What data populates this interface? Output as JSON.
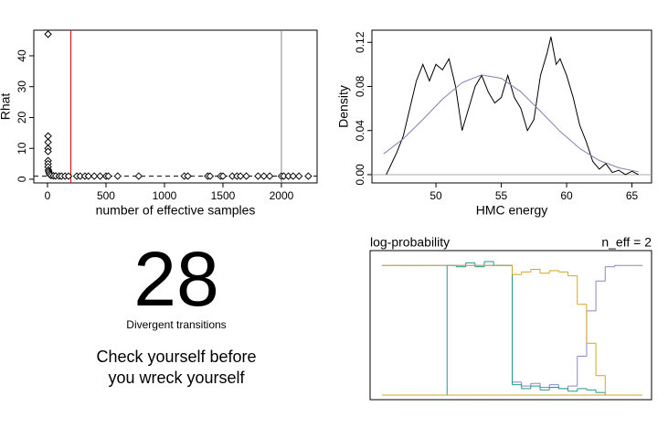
{
  "chart_data": [
    {
      "type": "scatter",
      "xlabel": "number of effective samples",
      "ylabel": "Rhat",
      "xlim": [
        -117,
        2305
      ],
      "ylim": [
        -1.2,
        48.3
      ],
      "xticks": [
        0,
        500,
        1000,
        1500,
        2000
      ],
      "yticks": [
        0,
        10,
        20,
        30,
        40
      ],
      "color": "#000000",
      "x": [
        5,
        5,
        5,
        5,
        5,
        5,
        5,
        5,
        8,
        10,
        15,
        20,
        30,
        50,
        70,
        100,
        120,
        150,
        180,
        250,
        280,
        320,
        350,
        400,
        450,
        500,
        520,
        600,
        780,
        1170,
        1200,
        1370,
        1390,
        1480,
        1500,
        1580,
        1620,
        1650,
        1700,
        1800,
        1850,
        1900,
        2000,
        2020,
        2060,
        2100,
        2150,
        2230
      ],
      "values": [
        47,
        14,
        12,
        10,
        9,
        6,
        5,
        4,
        3,
        2.5,
        2,
        1.5,
        1.2,
        1.1,
        1.05,
        1,
        1,
        1,
        1,
        1,
        1,
        1,
        1,
        1,
        1,
        1,
        1,
        1,
        1,
        1,
        1,
        1,
        1,
        1,
        1,
        1,
        1,
        1,
        1,
        1,
        1,
        1,
        1,
        1,
        1,
        1,
        1,
        1
      ],
      "vlines": [
        {
          "value": 200,
          "color": "#cc0000"
        },
        {
          "value": 2000,
          "color": "#888888"
        }
      ],
      "hlines": [
        {
          "value": 1,
          "color": "#000000",
          "dashed": true
        }
      ]
    },
    {
      "type": "line",
      "xlabel": "HMC energy",
      "ylabel": "Density",
      "xlim": [
        45.1,
        66.5
      ],
      "ylim": [
        -0.0075,
        0.131
      ],
      "xticks": [
        50,
        55,
        60,
        65
      ],
      "yticks": [
        {
          "value": 0,
          "label": "0.00"
        },
        0.04,
        0.08,
        0.12
      ],
      "series": [
        {
          "color": "#000000",
          "x": [
            46.2,
            46.6,
            47,
            47.5,
            48,
            48.5,
            49,
            49.5,
            50,
            50.5,
            51,
            51.5,
            52,
            52.5,
            53,
            53.5,
            54,
            54.5,
            55,
            55.5,
            56,
            56.5,
            57,
            57.5,
            58,
            58.5,
            58.8,
            59.2,
            59.5,
            60,
            60.5,
            61,
            61.5,
            62,
            62.5,
            63,
            63.5,
            64,
            64.5,
            65,
            65.5
          ],
          "values": [
            0,
            0.01,
            0.02,
            0.035,
            0.06,
            0.085,
            0.1,
            0.085,
            0.1,
            0.095,
            0.105,
            0.08,
            0.04,
            0.06,
            0.08,
            0.09,
            0.075,
            0.065,
            0.07,
            0.09,
            0.07,
            0.06,
            0.04,
            0.05,
            0.09,
            0.11,
            0.125,
            0.1,
            0.105,
            0.09,
            0.07,
            0.045,
            0.03,
            0.012,
            0.005,
            0.01,
            0.002,
            0.004,
            0,
            0.003,
            0
          ]
        },
        {
          "color": "#8080b0",
          "x": [
            46,
            47.5,
            49,
            50.5,
            52,
            53.5,
            55,
            56.5,
            58,
            59.5,
            61,
            62.5,
            64,
            65.5
          ],
          "values": [
            0.0189,
            0.0325,
            0.05,
            0.0685,
            0.0834,
            0.0905,
            0.0874,
            0.0751,
            0.0575,
            0.0392,
            0.0238,
            0.0128,
            0.0062,
            0.0026
          ]
        }
      ],
      "hlines": [
        {
          "value": 0,
          "color": "#aaaaaa",
          "dashed": false
        }
      ]
    },
    {
      "type": "step",
      "title": "log-probability",
      "annotation": "n_eff = 2",
      "series": [
        {
          "color": "#8a85c4",
          "values": [
            100,
            100,
            100,
            100,
            100,
            100,
            100,
            100,
            100,
            100,
            100,
            100,
            100,
            100,
            10,
            7,
            9,
            6,
            8,
            5,
            7,
            30,
            65,
            88,
            99,
            100,
            100,
            100
          ]
        },
        {
          "color": "#1f9a8a",
          "values": [
            0,
            0,
            0,
            0,
            0,
            0,
            0,
            100,
            99,
            102,
            99,
            103,
            100,
            100,
            8,
            5,
            7,
            4,
            6,
            5,
            3,
            5,
            4,
            2,
            0,
            0,
            0,
            0
          ]
        },
        {
          "color": "#d4a520",
          "values": [
            0,
            0,
            0,
            0,
            0,
            0,
            0,
            0,
            0,
            0,
            0,
            0,
            0,
            0,
            0,
            0,
            0,
            0,
            0,
            0,
            0,
            0,
            0,
            0,
            0,
            0,
            0,
            0
          ]
        },
        {
          "color": "#d4a520",
          "values": [
            100,
            100,
            100,
            100,
            100,
            100,
            100,
            100,
            100,
            100,
            100,
            100,
            100,
            100,
            93,
            95,
            97,
            94,
            96,
            95,
            92,
            70,
            40,
            15,
            0,
            0,
            0,
            0
          ]
        }
      ]
    }
  ],
  "summary": {
    "count": 28,
    "label": "Divergent transitions",
    "message_lines": [
      "Check yourself before",
      "you wreck yourself"
    ]
  }
}
